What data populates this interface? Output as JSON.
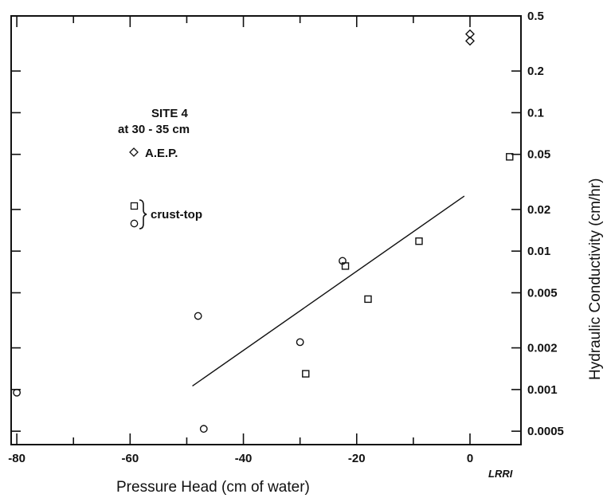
{
  "chart_data": {
    "type": "scatter",
    "xlabel": "Pressure Head (cm of water)",
    "ylabel": "Hydraulic Conductivity (cm/hr)",
    "x_ticks": [
      -80,
      -60,
      -40,
      -20,
      0
    ],
    "y_ticks": [
      {
        "value": 0.5,
        "label": "0.5"
      },
      {
        "value": 0.2,
        "label": "0.2"
      },
      {
        "value": 0.1,
        "label": "0.1"
      },
      {
        "value": 0.05,
        "label": "0.05"
      },
      {
        "value": 0.02,
        "label": "0.02"
      },
      {
        "value": 0.01,
        "label": "0.01"
      },
      {
        "value": 0.005,
        "label": "0.005"
      },
      {
        "value": 0.002,
        "label": "0.002"
      },
      {
        "value": 0.001,
        "label": "0.001"
      },
      {
        "value": 0.0005,
        "label": "0.0005"
      }
    ],
    "xlim": [
      -81,
      9
    ],
    "ylim": [
      0.0004,
      0.5
    ],
    "y_scale": "log",
    "y_axis_side": "right",
    "grid": false,
    "legend": {
      "title_line1": "SITE 4",
      "title_line2": "at 30 - 35 cm",
      "aep_label": "A.E.P.",
      "crust_label": "crust-top"
    },
    "series": [
      {
        "name": "A.E.P.",
        "marker": "diamond",
        "points": [
          {
            "x": 0,
            "y": 0.37
          },
          {
            "x": 0,
            "y": 0.33
          }
        ]
      },
      {
        "name": "crust",
        "marker": "square",
        "points": [
          {
            "x": 7,
            "y": 0.048
          },
          {
            "x": -9,
            "y": 0.0118
          },
          {
            "x": -22,
            "y": 0.0078
          },
          {
            "x": -18,
            "y": 0.0045
          },
          {
            "x": -29,
            "y": 0.0013
          }
        ]
      },
      {
        "name": "top",
        "marker": "circle",
        "points": [
          {
            "x": -80,
            "y": 0.00095
          },
          {
            "x": -48,
            "y": 0.0034
          },
          {
            "x": -47,
            "y": 0.00052
          },
          {
            "x": -22.5,
            "y": 0.0085
          },
          {
            "x": -30,
            "y": 0.0022
          }
        ]
      }
    ],
    "fit_line": [
      {
        "x": -49,
        "y": 0.00106
      },
      {
        "x": -1,
        "y": 0.025
      }
    ],
    "credit": "LRRI"
  }
}
